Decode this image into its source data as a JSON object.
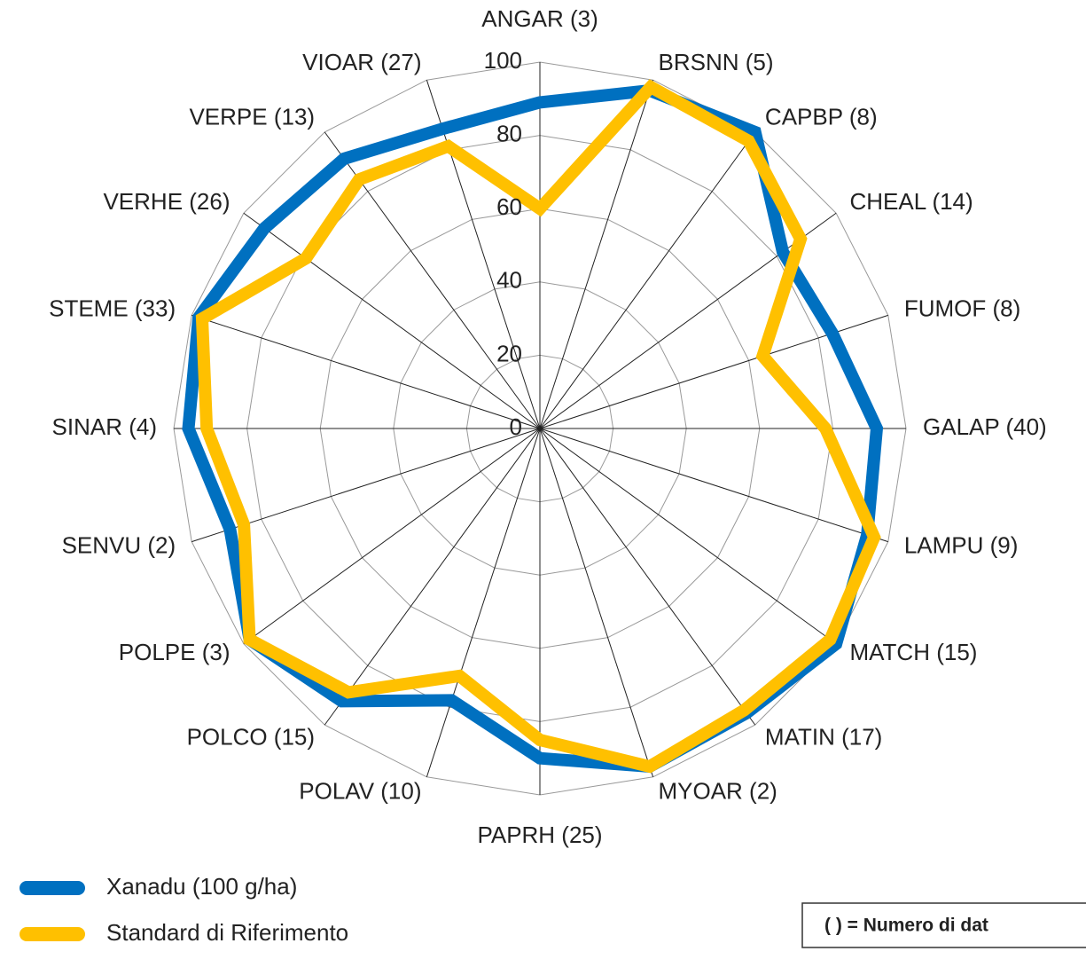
{
  "chart_data": {
    "type": "radar",
    "categories": [
      "ANGAR (3)",
      "BRSNN (5)",
      "CAPBP (8)",
      "CHEAL (14)",
      "FUMOF (8)",
      "GALAP (40)",
      "LAMPU (9)",
      "MATCH (15)",
      "MATIN (17)",
      "MYOAR (2)",
      "PAPRH (25)",
      "POLAV (10)",
      "POLCO (15)",
      "POLPE (3)",
      "SENVU (2)",
      "SINAR (4)",
      "STEME (33)",
      "VERHE (26)",
      "VERPE (13)",
      "VIOAR (27)"
    ],
    "series": [
      {
        "name": "Xanadu (100 g/ha)",
        "color": "#0070c0",
        "values": [
          89,
          97,
          100,
          82,
          84,
          92,
          94,
          100,
          96,
          97,
          90,
          78,
          92,
          98,
          89,
          96,
          98,
          93,
          91,
          86
        ]
      },
      {
        "name": "Standard di Riferimento",
        "color": "#ffc000",
        "values": [
          60,
          98,
          97,
          88,
          64,
          78,
          96,
          98,
          95,
          97,
          85,
          71,
          89,
          98,
          85,
          91,
          97,
          79,
          84,
          81
        ]
      }
    ],
    "ylim": [
      0,
      100
    ],
    "yticks": [
      0,
      20,
      40,
      60,
      80,
      100
    ],
    "grid": true,
    "annotation": "( ) = Numero di dat"
  }
}
